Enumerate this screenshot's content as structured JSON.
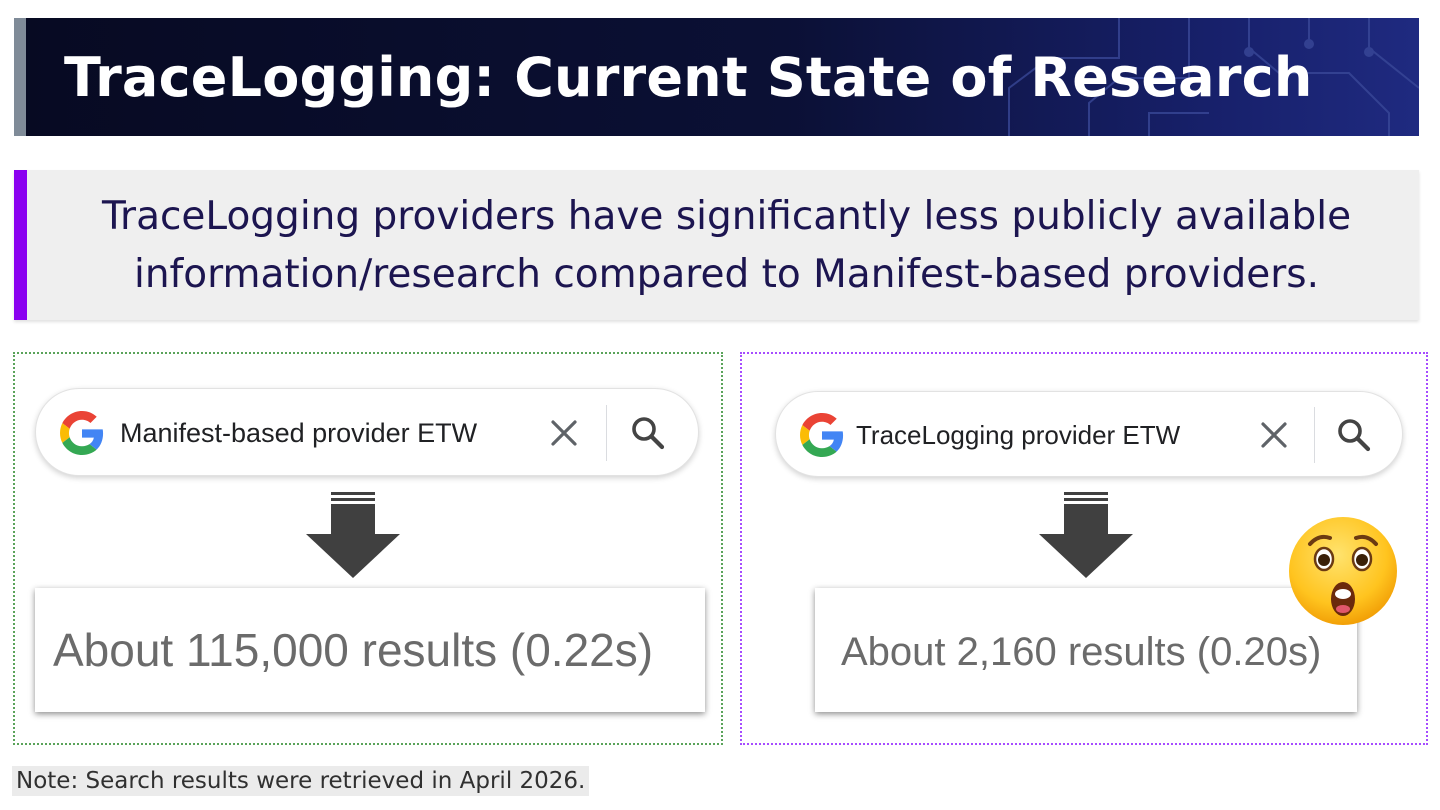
{
  "title": "TraceLogging: Current State of Research",
  "callout": {
    "line1": "TraceLogging providers have significantly less publicly available",
    "line2": "information/research compared to Manifest-based providers."
  },
  "left_panel": {
    "query": "Manifest-based provider ETW",
    "results": "About 115,000 results (0.22s)"
  },
  "right_panel": {
    "query": "TraceLogging provider ETW",
    "results": "About 2,160 results (0.20s)",
    "reaction_icon": "astonished-face-icon"
  },
  "note": "Note: Search results were retrieved in April 2026.",
  "colors": {
    "title_bg": "#0b1035",
    "title_accent": "#7f8b98",
    "callout_accent": "#8a00f0",
    "callout_text": "#1c1550",
    "left_border": "#5aa35a",
    "right_border": "#a64dff"
  }
}
